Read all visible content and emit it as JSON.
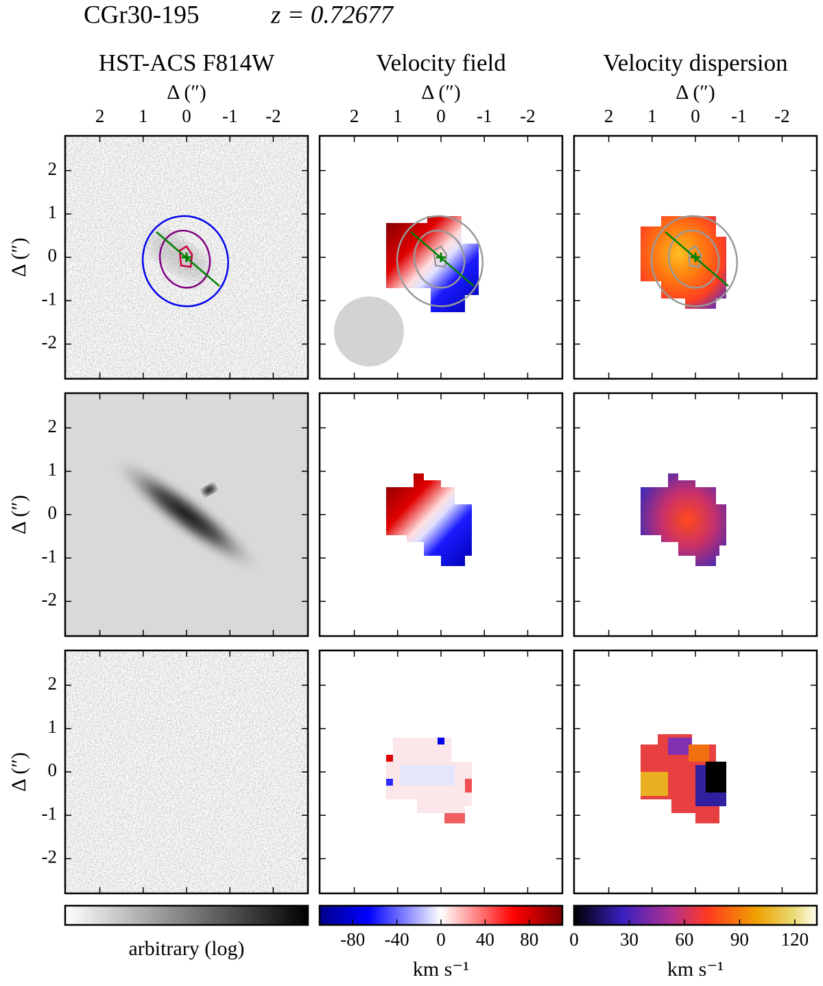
{
  "title": "CGr30-195",
  "redshift": "z = 0.72677",
  "columns": [
    "HST-ACS F814W",
    "Velocity field",
    "Velocity dispersion"
  ],
  "axis_label": "Δ   (″)",
  "xlim": [
    2.8,
    -2.8
  ],
  "ylim": [
    -2.8,
    2.8
  ],
  "xticks": [
    2,
    1,
    0,
    -1,
    -2
  ],
  "yticks": [
    2,
    1,
    0,
    -1,
    -2
  ],
  "colorbars": [
    {
      "label": "arbitrary (log)"
    },
    {
      "label": "km s⁻¹",
      "lim": [
        -110,
        110
      ],
      "ticks": [
        -80,
        -40,
        0,
        40,
        80
      ]
    },
    {
      "label": "km s⁻¹",
      "lim": [
        0,
        132
      ],
      "ticks": [
        0,
        30,
        60,
        90,
        120
      ]
    }
  ]
}
